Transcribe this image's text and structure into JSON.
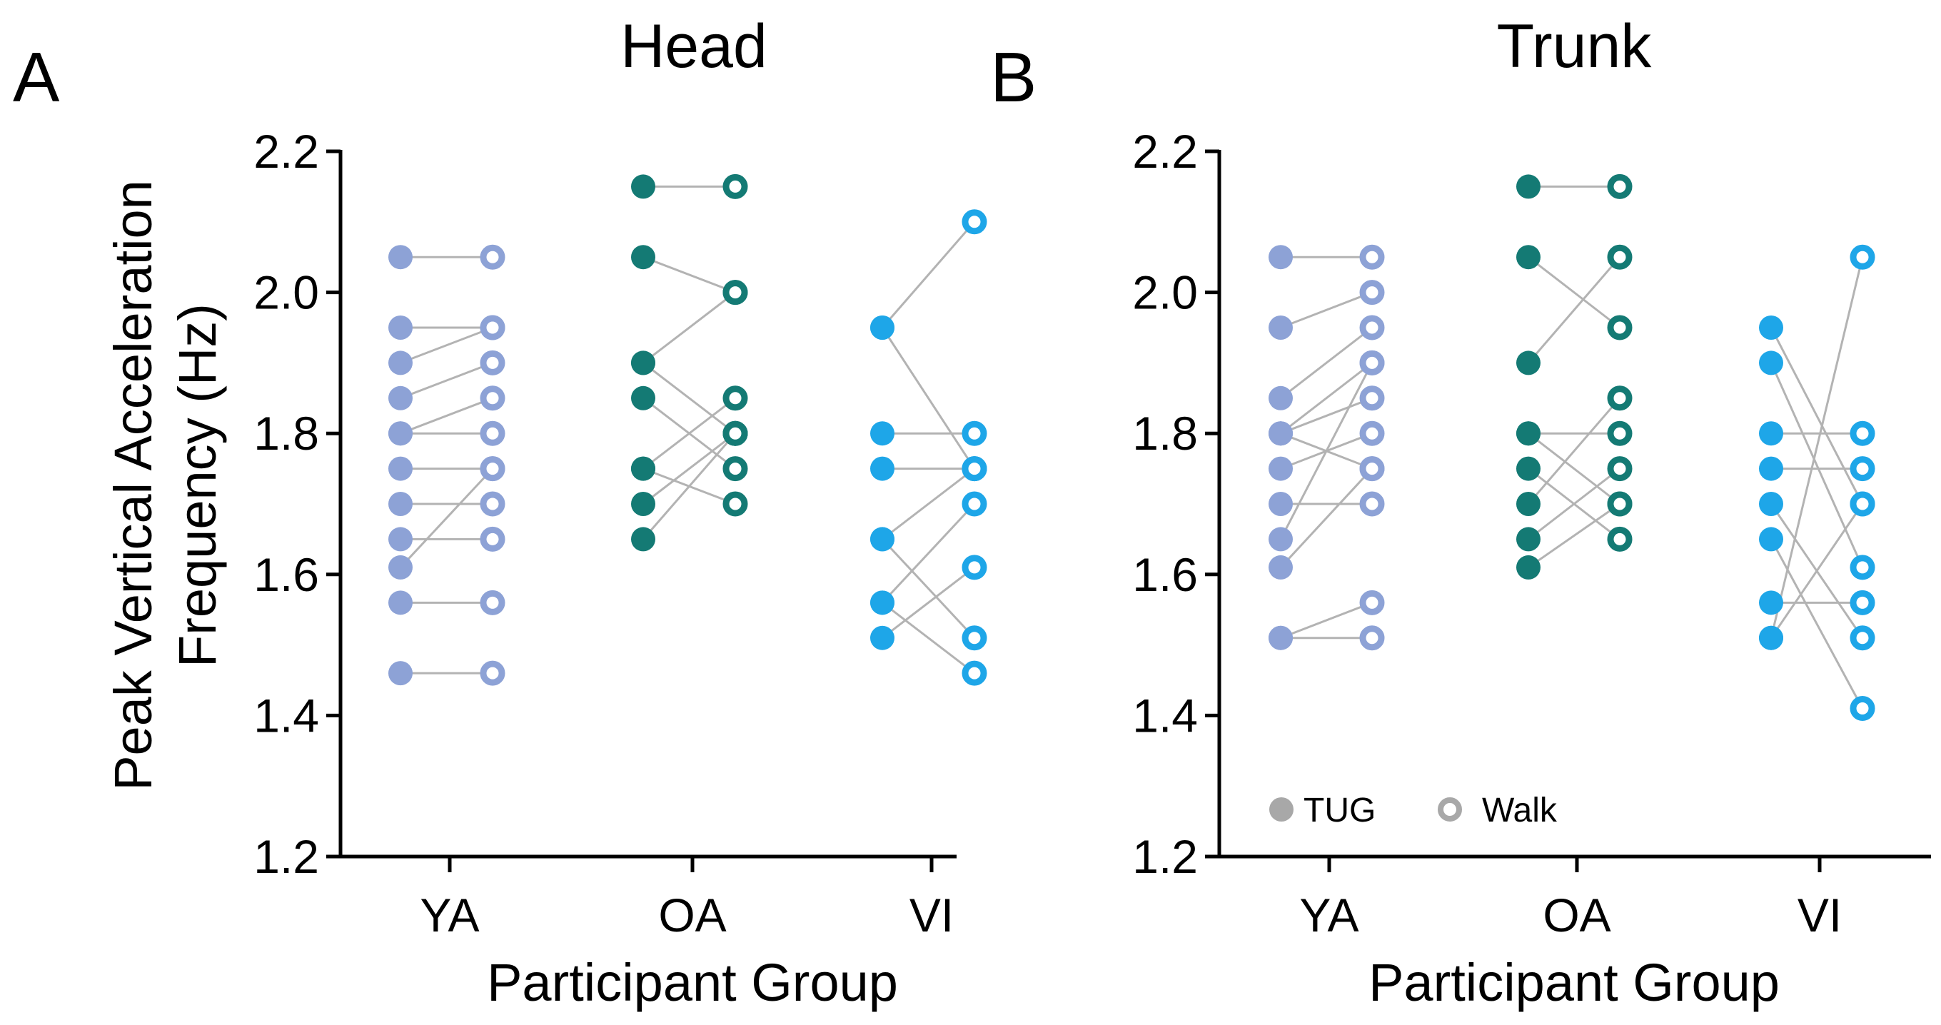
{
  "chart_data": [
    {
      "type": "scatter",
      "panel_label": "A",
      "title": "Head",
      "xlabel": "Participant Group",
      "ylabel": [
        "Peak Vertical Acceleration",
        "Frequency (Hz)"
      ],
      "ylim": [
        1.2,
        2.2
      ],
      "yticks": [
        "1.2",
        "1.4",
        "1.6",
        "1.8",
        "2.0",
        "2.2"
      ],
      "categories": [
        "YA",
        "OA",
        "VI"
      ],
      "series_style": "paired points: TUG (filled) connected to Walk (ring)",
      "groups": [
        {
          "name": "YA",
          "color": "#8DA2D6",
          "pairs": [
            {
              "tug": 2.05,
              "walk": 2.05
            },
            {
              "tug": 1.95,
              "walk": 1.95
            },
            {
              "tug": 1.9,
              "walk": 1.95
            },
            {
              "tug": 1.85,
              "walk": 1.9
            },
            {
              "tug": 1.8,
              "walk": 1.85
            },
            {
              "tug": 1.8,
              "walk": 1.8
            },
            {
              "tug": 1.75,
              "walk": 1.75
            },
            {
              "tug": 1.7,
              "walk": 1.7
            },
            {
              "tug": 1.65,
              "walk": 1.65
            },
            {
              "tug": 1.61,
              "walk": 1.75
            },
            {
              "tug": 1.56,
              "walk": 1.56
            },
            {
              "tug": 1.46,
              "walk": 1.46
            }
          ]
        },
        {
          "name": "OA",
          "color": "#147A74",
          "pairs": [
            {
              "tug": 2.15,
              "walk": 2.15
            },
            {
              "tug": 2.05,
              "walk": 2.0
            },
            {
              "tug": 1.9,
              "walk": 1.8
            },
            {
              "tug": 1.9,
              "walk": 2.0
            },
            {
              "tug": 1.85,
              "walk": 1.75
            },
            {
              "tug": 1.75,
              "walk": 1.85
            },
            {
              "tug": 1.7,
              "walk": 1.8
            },
            {
              "tug": 1.65,
              "walk": 1.8
            },
            {
              "tug": 1.75,
              "walk": 1.7
            }
          ]
        },
        {
          "name": "VI",
          "color": "#1EA6E8",
          "pairs": [
            {
              "tug": 1.95,
              "walk": 2.1
            },
            {
              "tug": 1.95,
              "walk": 1.75
            },
            {
              "tug": 1.8,
              "walk": 1.8
            },
            {
              "tug": 1.75,
              "walk": 1.75
            },
            {
              "tug": 1.65,
              "walk": 1.51
            },
            {
              "tug": 1.65,
              "walk": 1.75
            },
            {
              "tug": 1.56,
              "walk": 1.7
            },
            {
              "tug": 1.56,
              "walk": 1.46
            },
            {
              "tug": 1.51,
              "walk": 1.61
            }
          ]
        }
      ]
    },
    {
      "type": "scatter",
      "panel_label": "B",
      "title": "Trunk",
      "xlabel": "Participant Group",
      "ylim": [
        1.2,
        2.2
      ],
      "yticks": [
        "1.2",
        "1.4",
        "1.6",
        "1.8",
        "2.0",
        "2.2"
      ],
      "categories": [
        "YA",
        "OA",
        "VI"
      ],
      "legend": {
        "position": "bottom-left",
        "entries": [
          "TUG",
          "Walk"
        ],
        "color": "#A8A8A8"
      },
      "groups": [
        {
          "name": "YA",
          "color": "#8DA2D6",
          "pairs": [
            {
              "tug": 2.05,
              "walk": 2.05
            },
            {
              "tug": 1.95,
              "walk": 2.0
            },
            {
              "tug": 1.85,
              "walk": 1.95
            },
            {
              "tug": 1.8,
              "walk": 1.9
            },
            {
              "tug": 1.8,
              "walk": 1.85
            },
            {
              "tug": 1.8,
              "walk": 1.75
            },
            {
              "tug": 1.75,
              "walk": 1.8
            },
            {
              "tug": 1.7,
              "walk": 1.7
            },
            {
              "tug": 1.65,
              "walk": 1.9
            },
            {
              "tug": 1.61,
              "walk": 1.75
            },
            {
              "tug": 1.51,
              "walk": 1.56
            },
            {
              "tug": 1.51,
              "walk": 1.51
            }
          ]
        },
        {
          "name": "OA",
          "color": "#147A74",
          "pairs": [
            {
              "tug": 2.15,
              "walk": 2.15
            },
            {
              "tug": 2.05,
              "walk": 1.95
            },
            {
              "tug": 1.9,
              "walk": 2.05
            },
            {
              "tug": 1.8,
              "walk": 1.8
            },
            {
              "tug": 1.8,
              "walk": 1.7
            },
            {
              "tug": 1.75,
              "walk": 1.65
            },
            {
              "tug": 1.7,
              "walk": 1.85
            },
            {
              "tug": 1.65,
              "walk": 1.75
            },
            {
              "tug": 1.61,
              "walk": 1.7
            }
          ]
        },
        {
          "name": "VI",
          "color": "#1EA6E8",
          "pairs": [
            {
              "tug": 1.95,
              "walk": 1.7
            },
            {
              "tug": 1.9,
              "walk": 1.61
            },
            {
              "tug": 1.8,
              "walk": 1.8
            },
            {
              "tug": 1.75,
              "walk": 1.75
            },
            {
              "tug": 1.7,
              "walk": 1.51
            },
            {
              "tug": 1.65,
              "walk": 1.41
            },
            {
              "tug": 1.56,
              "walk": 1.56
            },
            {
              "tug": 1.51,
              "walk": 2.05
            },
            {
              "tug": 1.51,
              "walk": 1.7
            }
          ]
        }
      ]
    }
  ]
}
